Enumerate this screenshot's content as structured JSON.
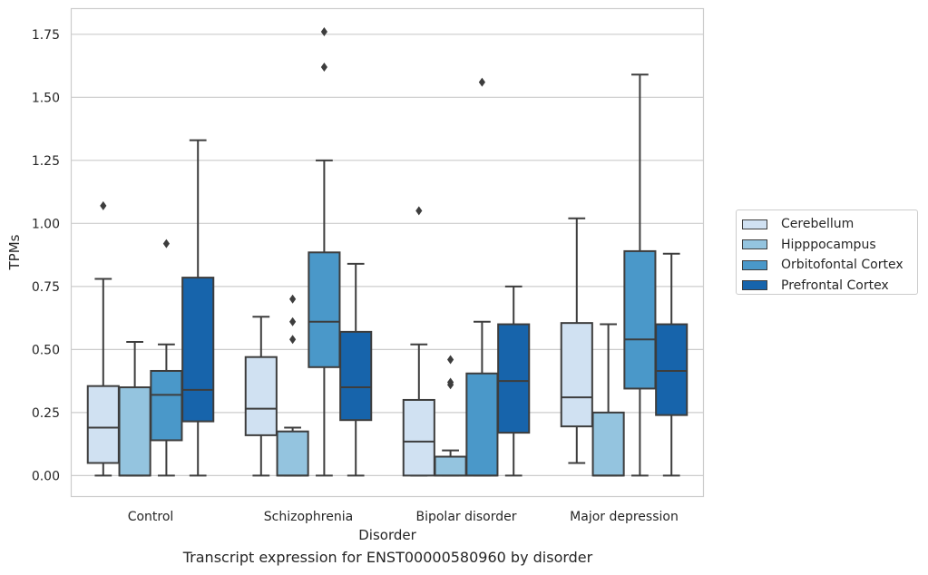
{
  "chart_data": {
    "type": "box",
    "title": "Transcript expression for ENST00000580960 by disorder",
    "xlabel": "Disorder",
    "ylabel": "TPMs",
    "ylim": [
      -0.085,
      1.85
    ],
    "yticks": [
      "0.00",
      "0.25",
      "0.50",
      "0.75",
      "1.00",
      "1.25",
      "1.50",
      "1.75"
    ],
    "grid": "horizontal",
    "legend_placement": "right, outside",
    "categories": [
      "Control",
      "Schizophrenia",
      "Bipolar disorder",
      "Major depression"
    ],
    "series": [
      {
        "name": "Cerebellum",
        "color": "#d0e1f2",
        "boxes": [
          {
            "whisker_low": 0.0,
            "q1": 0.05,
            "median": 0.19,
            "q3": 0.355,
            "whisker_high": 0.78,
            "outliers": [
              1.07
            ]
          },
          {
            "whisker_low": 0.0,
            "q1": 0.16,
            "median": 0.265,
            "q3": 0.47,
            "whisker_high": 0.63,
            "outliers": []
          },
          {
            "whisker_low": 0.0,
            "q1": 0.0,
            "median": 0.135,
            "q3": 0.3,
            "whisker_high": 0.52,
            "outliers": [
              1.05
            ]
          },
          {
            "whisker_low": 0.05,
            "q1": 0.195,
            "median": 0.31,
            "q3": 0.605,
            "whisker_high": 1.02,
            "outliers": []
          }
        ]
      },
      {
        "name": "Hipppocampus",
        "color": "#94c4df",
        "boxes": [
          {
            "whisker_low": 0.0,
            "q1": 0.0,
            "median": 0.0,
            "q3": 0.35,
            "whisker_high": 0.53,
            "outliers": []
          },
          {
            "whisker_low": 0.0,
            "q1": 0.0,
            "median": 0.0,
            "q3": 0.175,
            "whisker_high": 0.19,
            "outliers": [
              0.54,
              0.61,
              0.7
            ]
          },
          {
            "whisker_low": 0.0,
            "q1": 0.0,
            "median": 0.0,
            "q3": 0.075,
            "whisker_high": 0.1,
            "outliers": [
              0.36,
              0.37,
              0.46
            ]
          },
          {
            "whisker_low": 0.0,
            "q1": 0.0,
            "median": 0.0,
            "q3": 0.25,
            "whisker_high": 0.6,
            "outliers": []
          }
        ]
      },
      {
        "name": "Orbitofontal Cortex",
        "color": "#4a98c9",
        "boxes": [
          {
            "whisker_low": 0.0,
            "q1": 0.14,
            "median": 0.32,
            "q3": 0.415,
            "whisker_high": 0.52,
            "outliers": [
              0.92
            ]
          },
          {
            "whisker_low": 0.0,
            "q1": 0.43,
            "median": 0.61,
            "q3": 0.885,
            "whisker_high": 1.25,
            "outliers": [
              1.62,
              1.76
            ]
          },
          {
            "whisker_low": 0.0,
            "q1": 0.0,
            "median": 0.0,
            "q3": 0.405,
            "whisker_high": 0.61,
            "outliers": [
              1.56
            ]
          },
          {
            "whisker_low": 0.0,
            "q1": 0.345,
            "median": 0.54,
            "q3": 0.89,
            "whisker_high": 1.59,
            "outliers": []
          }
        ]
      },
      {
        "name": "Prefrontal Cortex",
        "color": "#1764ab",
        "boxes": [
          {
            "whisker_low": 0.0,
            "q1": 0.215,
            "median": 0.34,
            "q3": 0.785,
            "whisker_high": 1.33,
            "outliers": []
          },
          {
            "whisker_low": 0.0,
            "q1": 0.22,
            "median": 0.35,
            "q3": 0.57,
            "whisker_high": 0.84,
            "outliers": []
          },
          {
            "whisker_low": 0.0,
            "q1": 0.17,
            "median": 0.375,
            "q3": 0.6,
            "whisker_high": 0.75,
            "outliers": []
          },
          {
            "whisker_low": 0.0,
            "q1": 0.24,
            "median": 0.415,
            "q3": 0.6,
            "whisker_high": 0.88,
            "outliers": []
          }
        ]
      }
    ]
  }
}
